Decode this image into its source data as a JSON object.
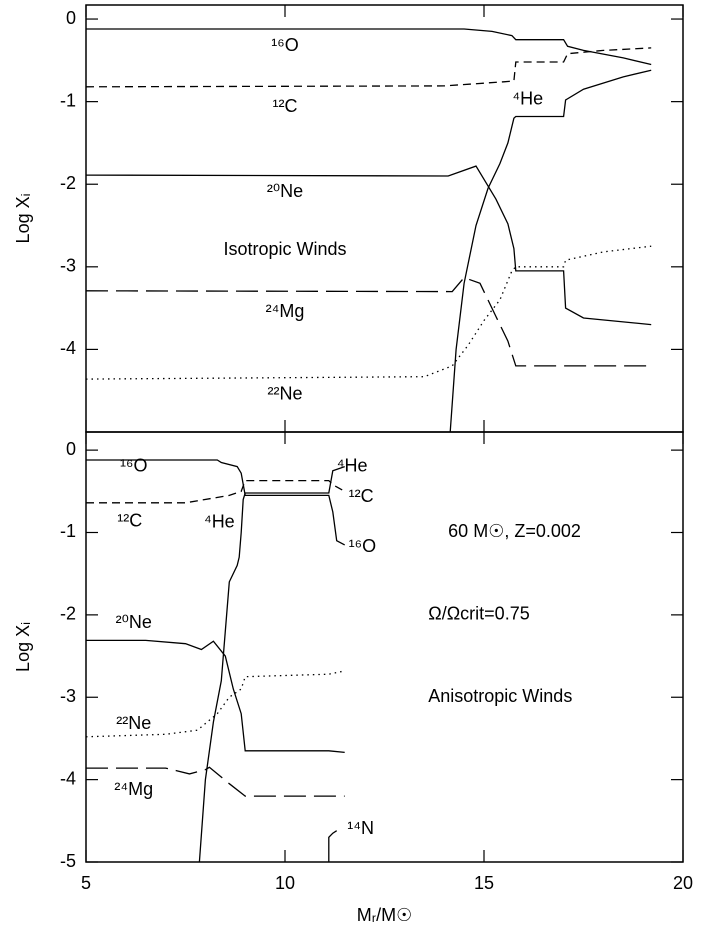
{
  "chart_data": [
    {
      "type": "line",
      "ylabel": "Log Xᵢ",
      "annotations": [
        "Isotropic Winds"
      ],
      "xlim": [
        5,
        20
      ],
      "xticks": [
        5,
        10,
        15,
        20
      ],
      "ylim": [
        -5,
        0.17
      ],
      "yticks": [
        0,
        -1,
        -2,
        -3,
        -4
      ],
      "series": [
        {
          "name": "¹⁶O",
          "color": "#000000",
          "dash": "solid",
          "x": [
            5,
            14.5,
            15.2,
            15.7,
            15.8,
            17.0,
            17.1,
            17.5,
            18.5,
            19.2
          ],
          "values": [
            -0.12,
            -0.12,
            -0.15,
            -0.2,
            -0.25,
            -0.25,
            -0.33,
            -0.38,
            -0.47,
            -0.55
          ]
        },
        {
          "name": "¹²C",
          "color": "#000000",
          "dash": "dashed",
          "x": [
            5,
            14,
            15.5,
            15.75,
            15.8,
            17.0,
            17.1,
            18,
            19.2
          ],
          "values": [
            -0.82,
            -0.81,
            -0.76,
            -0.75,
            -0.52,
            -0.52,
            -0.42,
            -0.38,
            -0.35
          ]
        },
        {
          "name": "⁴He",
          "color": "#000000",
          "dash": "solid",
          "x": [
            14.15,
            14.3,
            14.5,
            14.8,
            15.1,
            15.4,
            15.6,
            15.75,
            15.8,
            17.0,
            17.05,
            17.5,
            18.5,
            19.2
          ],
          "values": [
            -5,
            -4,
            -3.2,
            -2.5,
            -2.05,
            -1.75,
            -1.5,
            -1.2,
            -1.18,
            -1.18,
            -0.98,
            -0.85,
            -0.7,
            -0.62
          ]
        },
        {
          "name": "²⁰Ne",
          "color": "#000000",
          "dash": "solid",
          "x": [
            5,
            14.1,
            14.8,
            15.3,
            15.6,
            15.75,
            15.8,
            17.0,
            17.05,
            17.5,
            19.2
          ],
          "values": [
            -1.89,
            -1.9,
            -1.78,
            -2.18,
            -2.48,
            -2.78,
            -3.05,
            -3.05,
            -3.5,
            -3.62,
            -3.7
          ]
        },
        {
          "name": "²⁴Mg",
          "color": "#000000",
          "dash": "longdash",
          "x": [
            5,
            14.2,
            14.5,
            14.9,
            15.3,
            15.6,
            15.8,
            19.2
          ],
          "values": [
            -3.29,
            -3.3,
            -3.13,
            -3.2,
            -3.6,
            -3.9,
            -4.2,
            -4.2
          ]
        },
        {
          "name": "²²Ne",
          "color": "#000000",
          "dash": "dotted",
          "x": [
            5,
            13.5,
            14.2,
            14.6,
            15.0,
            15.4,
            15.7,
            15.8,
            17.0,
            17.05,
            18,
            19.2
          ],
          "values": [
            -4.36,
            -4.33,
            -4.2,
            -3.95,
            -3.65,
            -3.4,
            -3.05,
            -3.0,
            -3.0,
            -2.92,
            -2.82,
            -2.75
          ]
        }
      ]
    },
    {
      "type": "line",
      "xlabel": "Mᵣ/M☉",
      "ylabel": "Log Xᵢ",
      "annotations": [
        "60 M☉, Z=0.002",
        "Ω/Ωcrit=0.75",
        "Anisotropic Winds",
        "⁴He",
        "¹²C",
        "¹⁶O"
      ],
      "xlim": [
        5,
        20
      ],
      "xticks": [
        5,
        10,
        15,
        20
      ],
      "ylim": [
        -5,
        0.22
      ],
      "yticks": [
        0,
        -1,
        -2,
        -3,
        -4,
        -5
      ],
      "series": [
        {
          "name": "¹⁶O",
          "color": "#000000",
          "dash": "solid",
          "x": [
            5,
            8.3,
            8.4,
            8.8,
            8.9,
            9.0,
            11.1,
            11.2,
            11.3,
            11.5
          ],
          "values": [
            -0.12,
            -0.12,
            -0.15,
            -0.2,
            -0.28,
            -0.55,
            -0.55,
            -0.75,
            -1.1,
            -1.15
          ]
        },
        {
          "name": "¹²C",
          "color": "#000000",
          "dash": "dashed",
          "x": [
            5,
            7.5,
            8.6,
            8.9,
            9.0,
            11.1,
            11.2,
            11.5
          ],
          "values": [
            -0.64,
            -0.64,
            -0.55,
            -0.5,
            -0.37,
            -0.37,
            -0.42,
            -0.5
          ]
        },
        {
          "name": "⁴He",
          "color": "#000000",
          "dash": "solid",
          "x": [
            7.85,
            8.0,
            8.2,
            8.4,
            8.5,
            8.6,
            8.8,
            8.85,
            8.9,
            8.95,
            9.0,
            11.1,
            11.2,
            11.5
          ],
          "values": [
            -5,
            -4.0,
            -3.3,
            -2.8,
            -2.2,
            -1.6,
            -1.4,
            -1.3,
            -1.0,
            -0.6,
            -0.52,
            -0.52,
            -0.25,
            -0.2
          ]
        },
        {
          "name": "²⁰Ne",
          "color": "#000000",
          "dash": "solid",
          "x": [
            5,
            6.5,
            7.5,
            7.9,
            8.2,
            8.5,
            8.7,
            8.9,
            9.0,
            11.1,
            11.5
          ],
          "values": [
            -2.31,
            -2.31,
            -2.35,
            -2.42,
            -2.32,
            -2.5,
            -2.9,
            -3.2,
            -3.65,
            -3.65,
            -3.67
          ]
        },
        {
          "name": "²²Ne",
          "color": "#000000",
          "dash": "dotted",
          "x": [
            5,
            7,
            7.8,
            8.3,
            8.6,
            8.9,
            9.0,
            11.1,
            11.5
          ],
          "values": [
            -3.48,
            -3.45,
            -3.4,
            -3.2,
            -3.0,
            -2.9,
            -2.75,
            -2.72,
            -2.68
          ]
        },
        {
          "name": "²⁴Mg",
          "color": "#000000",
          "dash": "longdash",
          "x": [
            5,
            7,
            7.6,
            8.0,
            8.1,
            8.6,
            9.0,
            11.5
          ],
          "values": [
            -3.86,
            -3.86,
            -3.93,
            -3.88,
            -3.85,
            -4.05,
            -4.2,
            -4.2
          ]
        },
        {
          "name": "¹⁴N",
          "color": "#000000",
          "dash": "solid",
          "x": [
            11.1,
            11.1,
            11.2,
            11.3
          ],
          "values": [
            -5,
            -4.7,
            -4.65,
            -4.62
          ]
        }
      ]
    }
  ]
}
